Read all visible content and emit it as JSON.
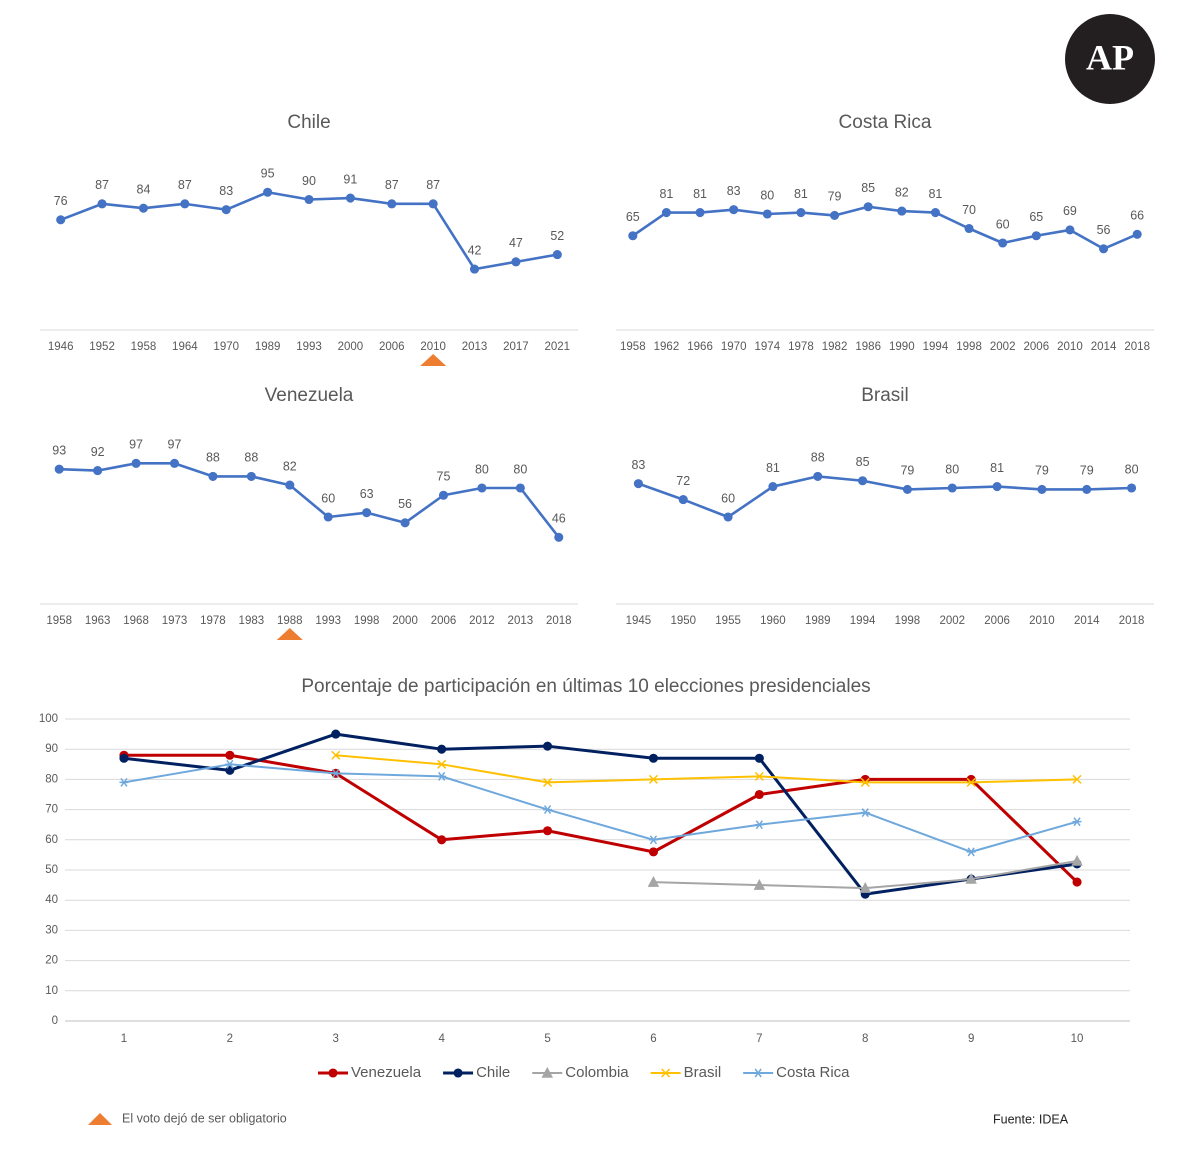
{
  "logo": "AP",
  "note": "El voto dejó de ser obligatorio",
  "source": "Fuente: IDEA",
  "chart_data": [
    {
      "type": "line",
      "title": "Chile",
      "color": "#4472c4",
      "highlight": "2010",
      "categories": [
        "1946",
        "1952",
        "1958",
        "1964",
        "1970",
        "1989",
        "1993",
        "2000",
        "2006",
        "2010",
        "2013",
        "2017",
        "2021"
      ],
      "values": [
        76,
        87,
        84,
        87,
        83,
        95,
        90,
        91,
        87,
        87,
        42,
        47,
        52
      ]
    },
    {
      "type": "line",
      "title": "Costa Rica",
      "color": "#4472c4",
      "categories": [
        "1958",
        "1962",
        "1966",
        "1970",
        "1974",
        "1978",
        "1982",
        "1986",
        "1990",
        "1994",
        "1998",
        "2002",
        "2006",
        "2010",
        "2014",
        "2018"
      ],
      "values": [
        65,
        81,
        81,
        83,
        80,
        81,
        79,
        85,
        82,
        81,
        70,
        60,
        65,
        69,
        56,
        66
      ]
    },
    {
      "type": "line",
      "title": "Venezuela",
      "color": "#4472c4",
      "highlight": "1988",
      "categories": [
        "1958",
        "1963",
        "1968",
        "1973",
        "1978",
        "1983",
        "1988",
        "1993",
        "1998",
        "2000",
        "2006",
        "2012",
        "2013",
        "2018"
      ],
      "values": [
        93,
        92,
        97,
        97,
        88,
        88,
        82,
        60,
        63,
        56,
        75,
        80,
        80,
        46
      ]
    },
    {
      "type": "line",
      "title": "Brasil",
      "color": "#4472c4",
      "categories": [
        "1945",
        "1950",
        "1955",
        "1960",
        "1989",
        "1994",
        "1998",
        "2002",
        "2006",
        "2010",
        "2014",
        "2018"
      ],
      "values": [
        83,
        72,
        60,
        81,
        88,
        85,
        79,
        80,
        81,
        79,
        79,
        80
      ]
    },
    {
      "type": "line",
      "title": "Porcentaje de participación en últimas 10 elecciones presidenciales",
      "categories": [
        1,
        2,
        3,
        4,
        5,
        6,
        7,
        8,
        9,
        10
      ],
      "ylim": [
        0,
        100
      ],
      "yticks": [
        0,
        10,
        20,
        30,
        40,
        50,
        60,
        70,
        80,
        90,
        100
      ],
      "grid": true,
      "series": [
        {
          "name": "Venezuela",
          "color": "#c00000",
          "marker": "circle",
          "values": [
            88,
            88,
            82,
            60,
            63,
            56,
            75,
            80,
            80,
            46
          ]
        },
        {
          "name": "Chile",
          "color": "#002060",
          "marker": "circle",
          "values": [
            87,
            83,
            95,
            90,
            91,
            87,
            87,
            42,
            47,
            52
          ]
        },
        {
          "name": "Colombia",
          "color": "#a5a5a5",
          "marker": "triangle",
          "values": [
            null,
            null,
            null,
            null,
            null,
            46,
            45,
            44,
            47,
            53
          ]
        },
        {
          "name": "Brasil",
          "color": "#ffc000",
          "marker": "x",
          "values": [
            null,
            null,
            88,
            85,
            79,
            80,
            81,
            79,
            79,
            80
          ]
        },
        {
          "name": "Costa Rica",
          "color": "#6fa8dc",
          "marker": "star",
          "values": [
            79,
            85,
            82,
            81,
            70,
            60,
            65,
            69,
            56,
            66
          ]
        }
      ]
    }
  ]
}
